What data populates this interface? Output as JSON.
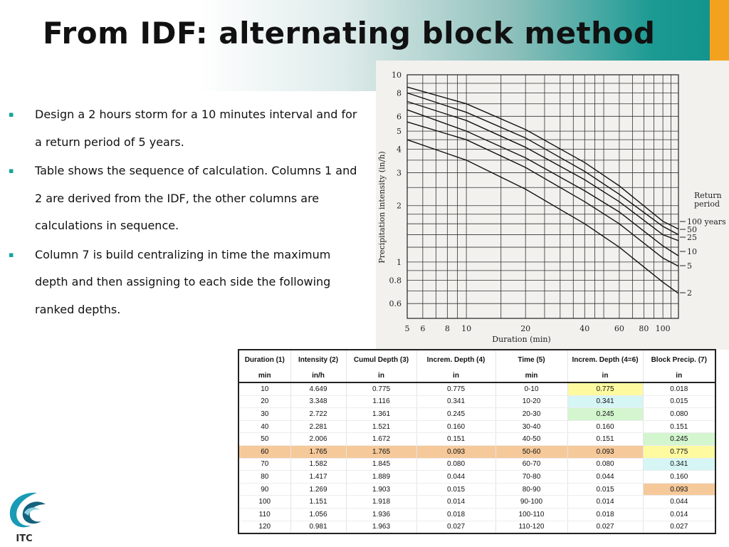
{
  "slide": {
    "title": "From IDF: alternating block method",
    "bullets": [
      "Design a 2 hours storm for a 10 minutes interval and for a return period of 5 years.",
      "Table shows the sequence of calculation. Columns 1 and 2 are derived from the IDF, the other columns are calculations in sequence.",
      "Column 7 is build centralizing in time the maximum depth and then assigning to each side the following ranked depths."
    ],
    "bullet_marker": "▪"
  },
  "chart_data": {
    "type": "line",
    "xscale": "log",
    "yscale": "log",
    "xlabel": "Duration  (min)",
    "ylabel": "Precipitation intensity  (in/h)",
    "x_ticks": [
      "5",
      "6",
      "8",
      "10",
      "20",
      "40",
      "60",
      "80",
      "100"
    ],
    "y_ticks": [
      "10",
      "8",
      "6",
      "5",
      "4",
      "3",
      "2",
      "1",
      "0.8",
      "0.6"
    ],
    "legend_title": "Return period",
    "legend": [
      "100 years",
      "50",
      "25",
      "10",
      "5",
      "2"
    ],
    "xlim": [
      5,
      120
    ],
    "ylim": [
      0.5,
      10
    ],
    "grid": true,
    "series": [
      {
        "name": "100 years",
        "x": [
          5,
          10,
          20,
          40,
          60,
          100,
          120
        ],
        "y": [
          8.6,
          7.0,
          5.1,
          3.4,
          2.55,
          1.65,
          1.5
        ]
      },
      {
        "name": "50",
        "x": [
          5,
          10,
          20,
          40,
          60,
          100,
          120
        ],
        "y": [
          8.0,
          6.3,
          4.6,
          3.05,
          2.3,
          1.55,
          1.4
        ]
      },
      {
        "name": "25",
        "x": [
          5,
          10,
          20,
          40,
          60,
          100,
          120
        ],
        "y": [
          7.2,
          5.7,
          4.1,
          2.75,
          2.1,
          1.4,
          1.3
        ]
      },
      {
        "name": "10",
        "x": [
          5,
          10,
          20,
          40,
          60,
          100,
          120
        ],
        "y": [
          6.5,
          5.0,
          3.6,
          2.4,
          1.85,
          1.22,
          1.08
        ]
      },
      {
        "name": "5",
        "x": [
          5,
          10,
          20,
          40,
          60,
          100,
          120
        ],
        "y": [
          5.6,
          4.5,
          3.2,
          2.1,
          1.6,
          1.05,
          0.95
        ]
      },
      {
        "name": "2",
        "x": [
          5,
          10,
          20,
          40,
          60,
          100,
          120
        ],
        "y": [
          4.5,
          3.5,
          2.45,
          1.6,
          1.2,
          0.78,
          0.68
        ]
      }
    ]
  },
  "table": {
    "headers": [
      "Duration (1)",
      "Intensity (2)",
      "Cumul Depth (3)",
      "Increm. Depth (4)",
      "Time (5)",
      "Increm. Depth (4=6)",
      "Block Precip. (7)"
    ],
    "units": [
      "min",
      "in/h",
      "in",
      "in",
      "min",
      "in",
      "in"
    ],
    "rows": [
      [
        "10",
        "4.649",
        "0.775",
        "0.775",
        "0-10",
        "0.775",
        "0.018"
      ],
      [
        "20",
        "3.348",
        "1.116",
        "0.341",
        "10-20",
        "0.341",
        "0.015"
      ],
      [
        "30",
        "2.722",
        "1.361",
        "0.245",
        "20-30",
        "0.245",
        "0.080"
      ],
      [
        "40",
        "2.281",
        "1.521",
        "0.160",
        "30-40",
        "0.160",
        "0.151"
      ],
      [
        "50",
        "2.006",
        "1.672",
        "0.151",
        "40-50",
        "0.151",
        "0.245"
      ],
      [
        "60",
        "1.765",
        "1.765",
        "0.093",
        "50-60",
        "0.093",
        "0.775"
      ],
      [
        "70",
        "1.582",
        "1.845",
        "0.080",
        "60-70",
        "0.080",
        "0.341"
      ],
      [
        "80",
        "1.417",
        "1.889",
        "0.044",
        "70-80",
        "0.044",
        "0.160"
      ],
      [
        "90",
        "1.269",
        "1.903",
        "0.015",
        "80-90",
        "0.015",
        "0.093"
      ],
      [
        "100",
        "1.151",
        "1.918",
        "0.014",
        "90-100",
        "0.014",
        "0.044"
      ],
      [
        "110",
        "1.056",
        "1.936",
        "0.018",
        "100-110",
        "0.018",
        "0.014"
      ],
      [
        "120",
        "0.981",
        "1.963",
        "0.027",
        "110-120",
        "0.027",
        "0.027"
      ]
    ],
    "highlighted_row": 5,
    "cell_colors": {
      "0-5": "yellow",
      "1-5": "cyan",
      "2-5": "green",
      "4-6": "green",
      "5-6": "yellow",
      "6-6": "cyan",
      "8-6": "orange"
    }
  },
  "logo": {
    "text": "ITC"
  },
  "colors": {
    "accent": "#17a39c",
    "orange": "#f3a21f",
    "highlight_row": "#f6c99a",
    "yellow": "#fdfaa0",
    "cyan": "#d6f6f6",
    "green": "#d3f6cf"
  }
}
